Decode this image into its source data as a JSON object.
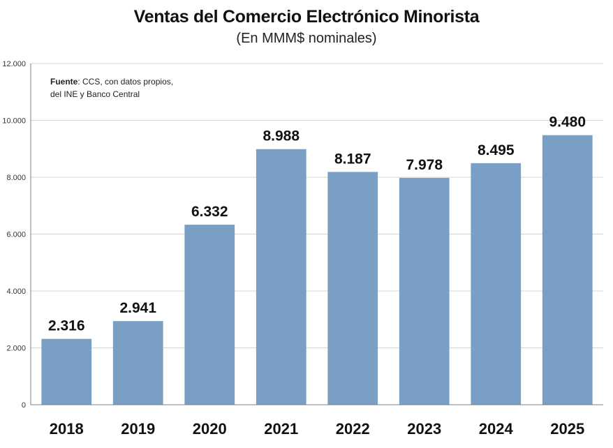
{
  "chart_data": {
    "type": "bar",
    "title": "Ventas del Comercio Electrónico Minorista",
    "subtitle": "(En MMM$ nominales)",
    "xlabel": "",
    "ylabel": "",
    "categories": [
      "2018",
      "2019",
      "2020",
      "2021",
      "2022",
      "2023",
      "2024",
      "2025"
    ],
    "values": [
      2316,
      2941,
      6332,
      8988,
      8187,
      7978,
      8495,
      9480
    ],
    "value_labels": [
      "2.316",
      "2.941",
      "6.332",
      "8.988",
      "8.187",
      "7.978",
      "8.495",
      "9.480"
    ],
    "ylim": [
      0,
      12000
    ],
    "yticks": [
      0,
      2000,
      4000,
      6000,
      8000,
      10000,
      12000
    ],
    "ytick_labels": [
      "0",
      "2.000",
      "4.000",
      "6.000",
      "8.000",
      "10.000",
      "12.000"
    ],
    "grid": true,
    "legend": "none",
    "annotation": {
      "label": "Fuente",
      "text_line1": ": CCS, con datos propios,",
      "text_line2": "del INE y Banco Central"
    }
  },
  "colors": {
    "bar": "#7a9fc4",
    "grid": "#d4d4d4",
    "axis": "#7f7f7f"
  }
}
